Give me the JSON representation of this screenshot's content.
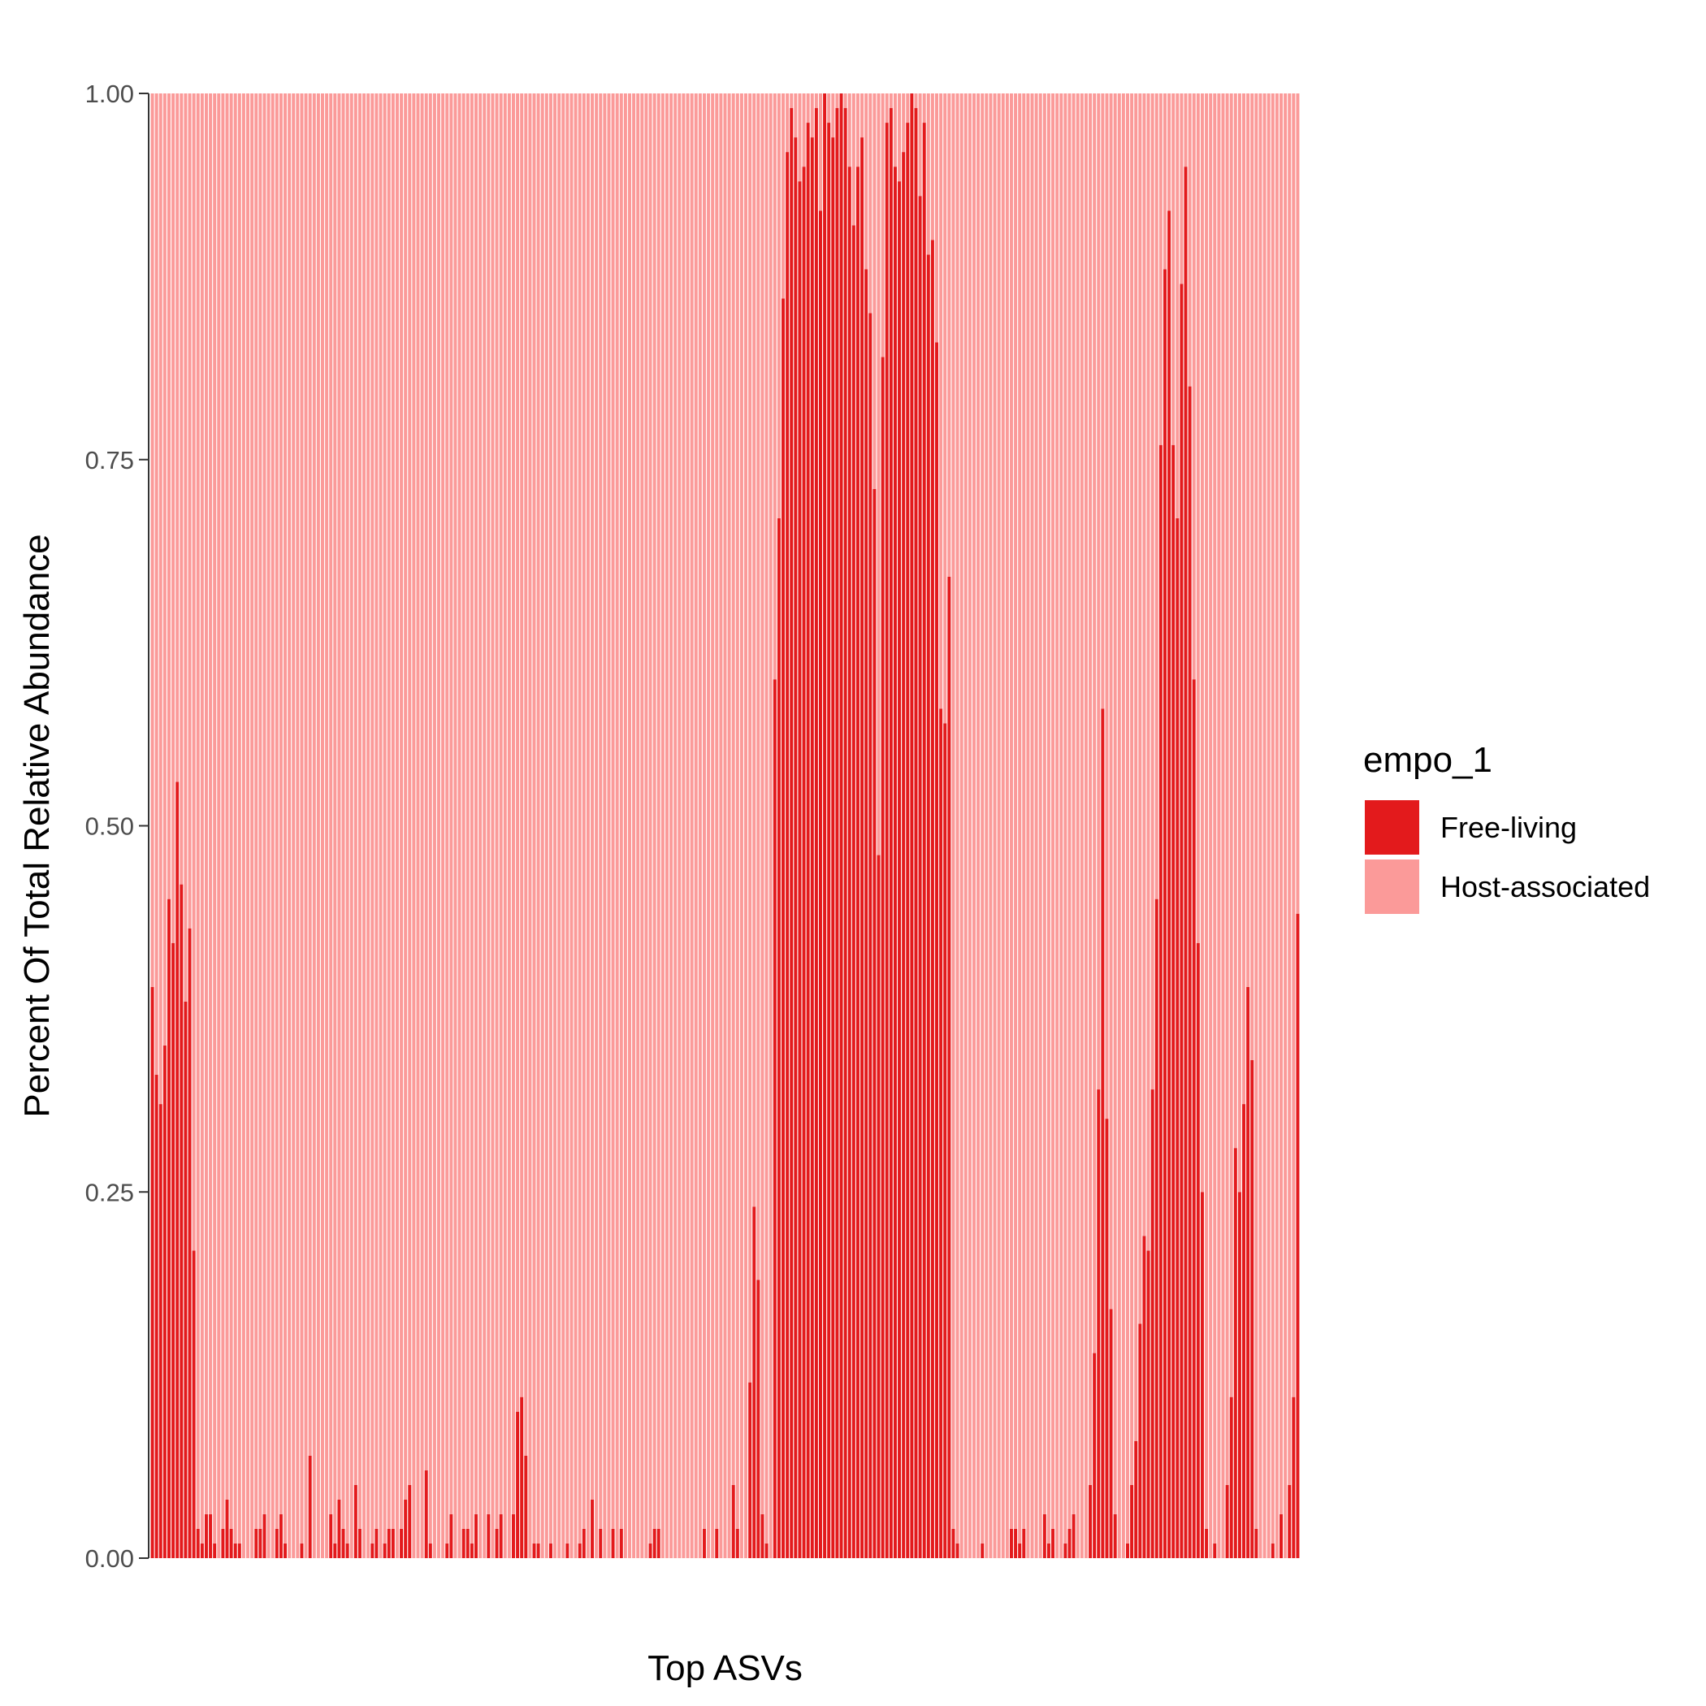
{
  "chart_data": {
    "type": "bar",
    "stacked": true,
    "title": "",
    "xlabel": "Top ASVs",
    "ylabel": "Percent Of Total Relative Abundance",
    "ylim": [
      0,
      1
    ],
    "yticks": [
      "0.00",
      "0.25",
      "0.50",
      "0.75",
      "1.00"
    ],
    "grid": false,
    "legend": {
      "title": "empo_1",
      "position": "right",
      "entries": [
        {
          "name": "Free-living",
          "color": "#E31A1C"
        },
        {
          "name": "Host-associated",
          "color": "#FB9A99"
        }
      ]
    },
    "series": [
      {
        "name": "Free-living",
        "color": "#E31A1C",
        "values": [
          0.39,
          0.33,
          0.31,
          0.35,
          0.45,
          0.42,
          0.53,
          0.46,
          0.38,
          0.43,
          0.21,
          0.02,
          0.01,
          0.03,
          0.03,
          0.01,
          0.0,
          0.02,
          0.04,
          0.02,
          0.01,
          0.01,
          0.0,
          0.0,
          0.0,
          0.02,
          0.02,
          0.03,
          0.0,
          0.0,
          0.02,
          0.03,
          0.01,
          0.0,
          0.0,
          0.0,
          0.01,
          0.0,
          0.07,
          0.0,
          0.0,
          0.0,
          0.0,
          0.03,
          0.01,
          0.04,
          0.02,
          0.01,
          0.0,
          0.05,
          0.02,
          0.0,
          0.0,
          0.01,
          0.02,
          0.0,
          0.01,
          0.02,
          0.02,
          0.0,
          0.02,
          0.04,
          0.05,
          0.0,
          0.0,
          0.0,
          0.06,
          0.01,
          0.0,
          0.0,
          0.0,
          0.01,
          0.03,
          0.0,
          0.0,
          0.02,
          0.02,
          0.01,
          0.03,
          0.0,
          0.0,
          0.03,
          0.0,
          0.02,
          0.03,
          0.0,
          0.0,
          0.03,
          0.1,
          0.11,
          0.07,
          0.0,
          0.01,
          0.01,
          0.0,
          0.0,
          0.01,
          0.0,
          0.0,
          0.0,
          0.01,
          0.0,
          0.0,
          0.01,
          0.02,
          0.0,
          0.04,
          0.0,
          0.02,
          0.0,
          0.0,
          0.02,
          0.0,
          0.02,
          0.0,
          0.0,
          0.0,
          0.0,
          0.0,
          0.0,
          0.01,
          0.02,
          0.02,
          0.0,
          0.0,
          0.0,
          0.0,
          0.0,
          0.0,
          0.0,
          0.0,
          0.0,
          0.0,
          0.02,
          0.0,
          0.0,
          0.02,
          0.0,
          0.0,
          0.0,
          0.05,
          0.02,
          0.0,
          0.0,
          0.12,
          0.24,
          0.19,
          0.03,
          0.01,
          0.0,
          0.6,
          0.71,
          0.86,
          0.96,
          0.99,
          0.97,
          0.94,
          0.95,
          0.98,
          0.97,
          0.99,
          0.92,
          1.0,
          0.98,
          0.97,
          0.99,
          1.0,
          0.99,
          0.95,
          0.91,
          0.95,
          0.97,
          0.88,
          0.85,
          0.73,
          0.48,
          0.82,
          0.98,
          0.99,
          0.95,
          0.94,
          0.96,
          0.98,
          1.0,
          0.99,
          0.93,
          0.98,
          0.89,
          0.9,
          0.83,
          0.58,
          0.57,
          0.67,
          0.02,
          0.01,
          0.0,
          0.0,
          0.0,
          0.0,
          0.0,
          0.01,
          0.0,
          0.0,
          0.0,
          0.0,
          0.0,
          0.0,
          0.02,
          0.02,
          0.01,
          0.02,
          0.0,
          0.0,
          0.0,
          0.0,
          0.03,
          0.01,
          0.02,
          0.0,
          0.0,
          0.01,
          0.02,
          0.03,
          0.0,
          0.0,
          0.0,
          0.05,
          0.14,
          0.32,
          0.58,
          0.3,
          0.17,
          0.03,
          0.0,
          0.0,
          0.01,
          0.05,
          0.08,
          0.16,
          0.22,
          0.21,
          0.32,
          0.45,
          0.76,
          0.88,
          0.92,
          0.76,
          0.71,
          0.87,
          0.95,
          0.8,
          0.6,
          0.42,
          0.25,
          0.02,
          0.0,
          0.01,
          0.0,
          0.0,
          0.05,
          0.11,
          0.28,
          0.25,
          0.31,
          0.39,
          0.34,
          0.02,
          0.0,
          0.0,
          0.0,
          0.01,
          0.0,
          0.03,
          0.0,
          0.05,
          0.11,
          0.44
        ]
      },
      {
        "name": "Host-associated",
        "color": "#FB9A99",
        "values": [
          0.61,
          0.67,
          0.69,
          0.65,
          0.55,
          0.58,
          0.47,
          0.54,
          0.62,
          0.57,
          0.79,
          0.98,
          0.99,
          0.97,
          0.97,
          0.99,
          1.0,
          0.98,
          0.96,
          0.98,
          0.99,
          0.99,
          1.0,
          1.0,
          1.0,
          0.98,
          0.98,
          0.97,
          1.0,
          1.0,
          0.98,
          0.97,
          0.99,
          1.0,
          1.0,
          1.0,
          0.99,
          1.0,
          0.93,
          1.0,
          1.0,
          1.0,
          1.0,
          0.97,
          0.99,
          0.96,
          0.98,
          0.99,
          1.0,
          0.95,
          0.98,
          1.0,
          1.0,
          0.99,
          0.98,
          1.0,
          0.99,
          0.98,
          0.98,
          1.0,
          0.98,
          0.96,
          0.95,
          1.0,
          1.0,
          1.0,
          0.94,
          0.99,
          1.0,
          1.0,
          1.0,
          0.99,
          0.97,
          1.0,
          1.0,
          0.98,
          0.98,
          0.99,
          0.97,
          1.0,
          1.0,
          0.97,
          1.0,
          0.98,
          0.97,
          1.0,
          1.0,
          0.97,
          0.9,
          0.89,
          0.93,
          1.0,
          0.99,
          0.99,
          1.0,
          1.0,
          0.99,
          1.0,
          1.0,
          1.0,
          0.99,
          1.0,
          1.0,
          0.99,
          0.98,
          1.0,
          0.96,
          1.0,
          0.98,
          1.0,
          1.0,
          0.98,
          1.0,
          0.98,
          1.0,
          1.0,
          1.0,
          1.0,
          1.0,
          1.0,
          0.99,
          0.98,
          0.98,
          1.0,
          1.0,
          1.0,
          1.0,
          1.0,
          1.0,
          1.0,
          1.0,
          1.0,
          1.0,
          0.98,
          1.0,
          1.0,
          0.98,
          1.0,
          1.0,
          1.0,
          0.95,
          0.98,
          1.0,
          1.0,
          0.88,
          0.76,
          0.81,
          0.97,
          0.99,
          1.0,
          0.4,
          0.29,
          0.14,
          0.04,
          0.01,
          0.03,
          0.06,
          0.05,
          0.02,
          0.03,
          0.01,
          0.08,
          0.0,
          0.02,
          0.03,
          0.01,
          0.0,
          0.01,
          0.05,
          0.09,
          0.05,
          0.03,
          0.12,
          0.15,
          0.27,
          0.52,
          0.18,
          0.02,
          0.01,
          0.05,
          0.06,
          0.04,
          0.02,
          0.0,
          0.01,
          0.07,
          0.02,
          0.11,
          0.1,
          0.17,
          0.42,
          0.43,
          0.33,
          0.98,
          0.99,
          1.0,
          1.0,
          1.0,
          1.0,
          1.0,
          0.99,
          1.0,
          1.0,
          1.0,
          1.0,
          1.0,
          1.0,
          0.98,
          0.98,
          0.99,
          0.98,
          1.0,
          1.0,
          1.0,
          1.0,
          0.97,
          0.99,
          0.98,
          1.0,
          1.0,
          0.99,
          0.98,
          0.97,
          1.0,
          1.0,
          1.0,
          0.95,
          0.86,
          0.68,
          0.42,
          0.7,
          0.83,
          0.97,
          1.0,
          1.0,
          0.99,
          0.95,
          0.92,
          0.84,
          0.78,
          0.79,
          0.68,
          0.55,
          0.24,
          0.12,
          0.08,
          0.24,
          0.29,
          0.13,
          0.05,
          0.2,
          0.4,
          0.58,
          0.75,
          0.98,
          1.0,
          0.99,
          1.0,
          1.0,
          0.95,
          0.89,
          0.72,
          0.75,
          0.69,
          0.61,
          0.66,
          0.98,
          1.0,
          1.0,
          1.0,
          0.99,
          1.0,
          0.97,
          1.0,
          0.95,
          0.89,
          0.56
        ]
      }
    ]
  }
}
